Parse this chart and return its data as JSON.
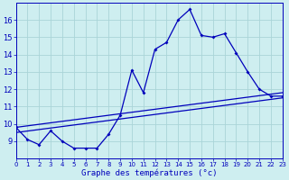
{
  "title": "",
  "xlabel": "Graphe des températures (°c)",
  "ylabel": "",
  "background_color": "#ceeef0",
  "grid_color": "#aad4d8",
  "line_color": "#0000bb",
  "x_hours": [
    0,
    1,
    2,
    3,
    4,
    5,
    6,
    7,
    8,
    9,
    10,
    11,
    12,
    13,
    14,
    15,
    16,
    17,
    18,
    19,
    20,
    21,
    22,
    23
  ],
  "line1": [
    9.8,
    9.1,
    8.8,
    9.6,
    9.0,
    8.6,
    8.6,
    8.6,
    9.4,
    10.5,
    13.1,
    11.8,
    14.3,
    14.7,
    16.0,
    16.6,
    15.1,
    15.0,
    15.2,
    14.1,
    13.0,
    12.0,
    11.6,
    11.6
  ],
  "line2_x": [
    0,
    23
  ],
  "line2_y": [
    9.5,
    11.5
  ],
  "line3_x": [
    0,
    23
  ],
  "line3_y": [
    9.8,
    11.8
  ],
  "ylim": [
    8,
    17
  ],
  "yticks": [
    9,
    10,
    11,
    12,
    13,
    14,
    15,
    16
  ],
  "xlim": [
    0,
    23
  ],
  "xticks": [
    0,
    1,
    2,
    3,
    4,
    5,
    6,
    7,
    8,
    9,
    10,
    11,
    12,
    13,
    14,
    15,
    16,
    17,
    18,
    19,
    20,
    21,
    22,
    23
  ]
}
